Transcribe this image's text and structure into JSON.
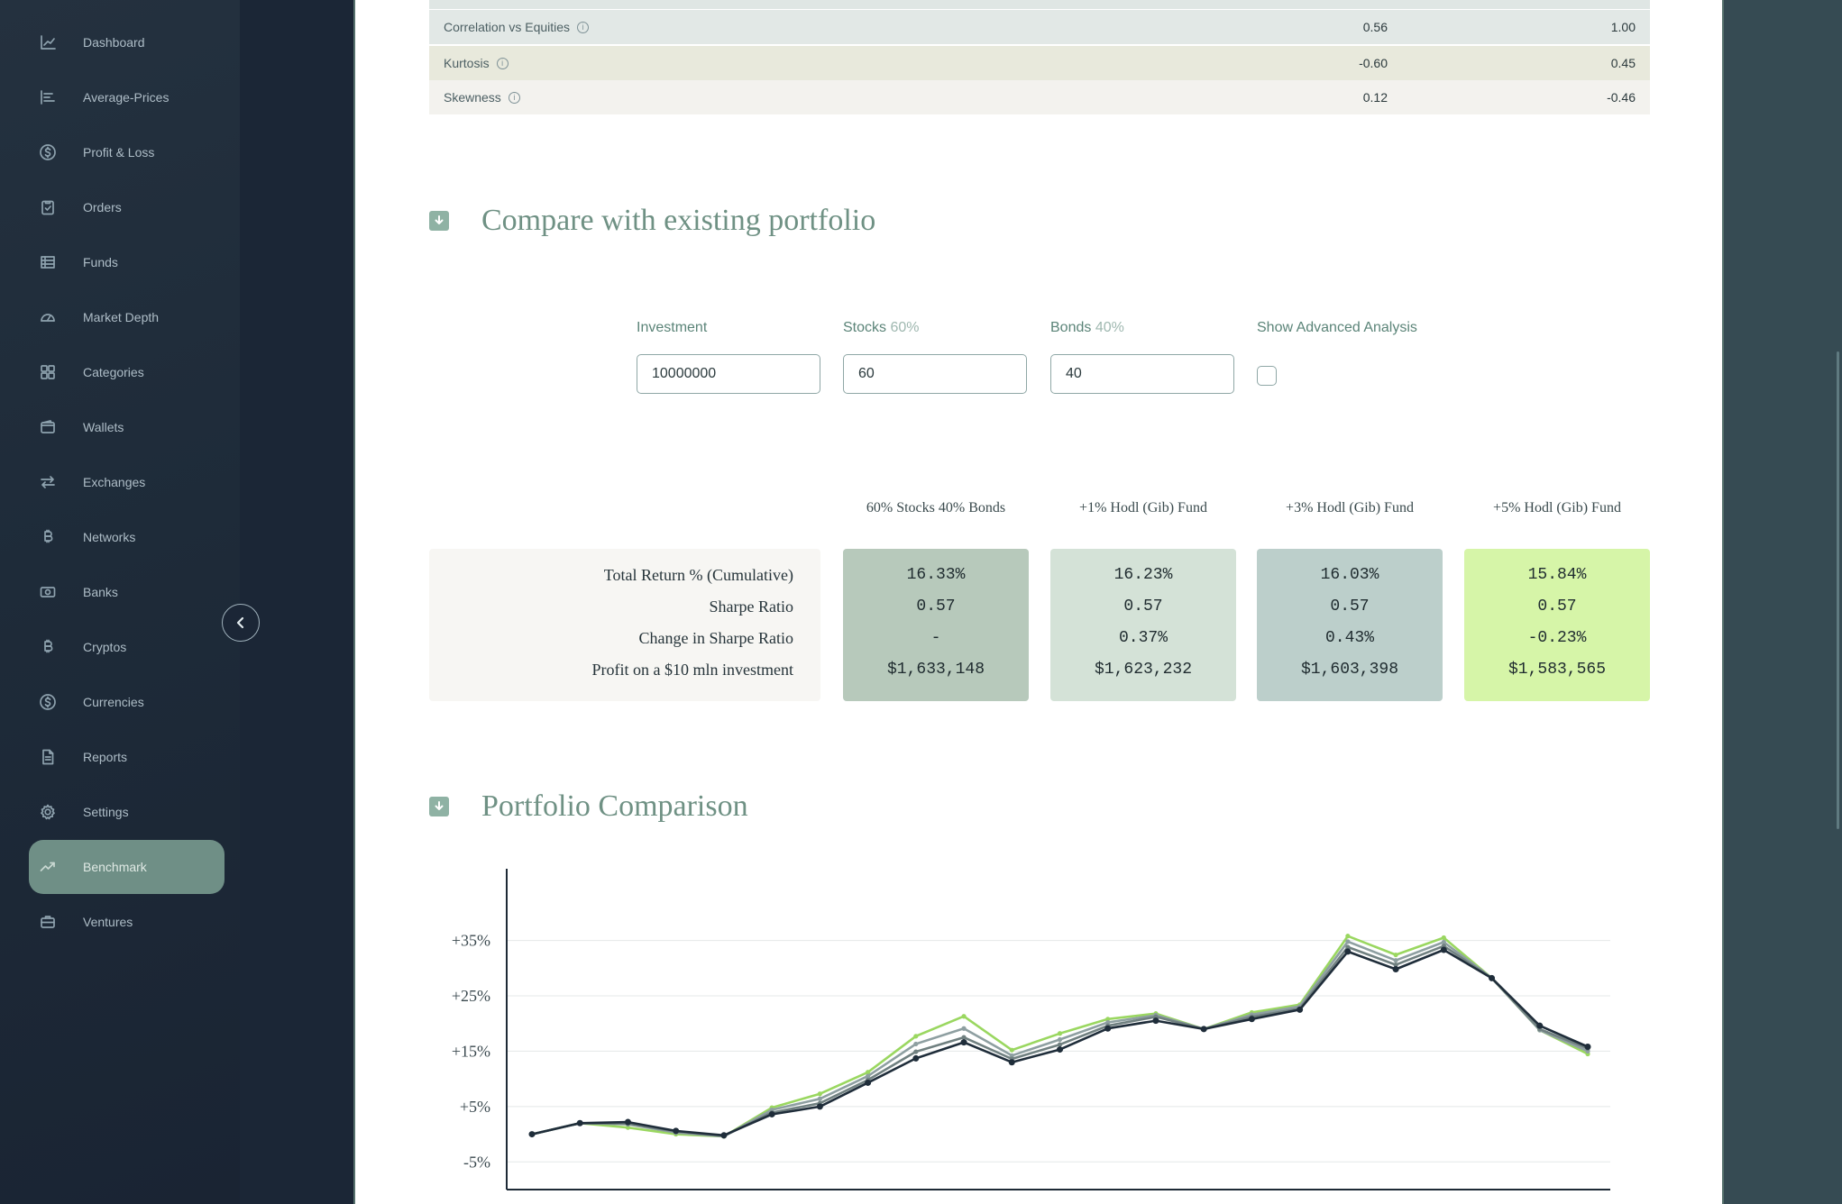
{
  "sidebar": {
    "items": [
      {
        "label": "Dashboard",
        "icon": "chart-line-icon"
      },
      {
        "label": "Average-Prices",
        "icon": "bar-list-icon"
      },
      {
        "label": "Profit & Loss",
        "icon": "dollar-circle-icon"
      },
      {
        "label": "Orders",
        "icon": "clipboard-check-icon"
      },
      {
        "label": "Funds",
        "icon": "grid-table-icon"
      },
      {
        "label": "Market Depth",
        "icon": "gauge-icon"
      },
      {
        "label": "Categories",
        "icon": "four-squares-icon"
      },
      {
        "label": "Wallets",
        "icon": "wallet-icon"
      },
      {
        "label": "Exchanges",
        "icon": "swap-arrows-icon"
      },
      {
        "label": "Networks",
        "icon": "bitcoin-icon"
      },
      {
        "label": "Banks",
        "icon": "cash-icon"
      },
      {
        "label": "Cryptos",
        "icon": "bitcoin-icon"
      },
      {
        "label": "Currencies",
        "icon": "dollar-circle-icon"
      },
      {
        "label": "Reports",
        "icon": "document-icon"
      },
      {
        "label": "Settings",
        "icon": "gear-icon"
      },
      {
        "label": "Benchmark",
        "icon": "trend-up-icon",
        "active": true
      },
      {
        "label": "Ventures",
        "icon": "briefcase-icon"
      }
    ],
    "collapse_icon": "chevron-left-icon"
  },
  "stats": [
    {
      "label": "Correlation vs Equities",
      "v1": "0.56",
      "v2": "1.00"
    },
    {
      "label": "Kurtosis",
      "v1": "-0.60",
      "v2": "0.45"
    },
    {
      "label": "Skewness",
      "v1": "0.12",
      "v2": "-0.46"
    }
  ],
  "compare": {
    "title": "Compare with existing portfolio",
    "investment_label": "Investment",
    "investment_value": "10000000",
    "stocks_label": "Stocks",
    "stocks_pct": "60%",
    "stocks_value": "60",
    "bonds_label": "Bonds",
    "bonds_pct": "40%",
    "bonds_value": "40",
    "advanced_label": "Show Advanced Analysis"
  },
  "table": {
    "columns": [
      "60% Stocks 40% Bonds",
      "+1% Hodl (Gib) Fund",
      "+3% Hodl (Gib) Fund",
      "+5% Hodl (Gib) Fund"
    ],
    "column_colors": [
      "#b7c9bb",
      "#d4e2d7",
      "#bccfcb",
      "#d6f5a8"
    ],
    "row_labels": [
      "Total Return % (Cumulative)",
      "Sharpe Ratio",
      "Change in Sharpe Ratio",
      "Profit on a $10 mln investment"
    ],
    "values": [
      [
        "16.33%",
        "0.57",
        "-",
        "$1,633,148"
      ],
      [
        "16.23%",
        "0.57",
        "0.37%",
        "$1,623,232"
      ],
      [
        "16.03%",
        "0.57",
        "0.43%",
        "$1,603,398"
      ],
      [
        "15.84%",
        "0.57",
        "-0.23%",
        "$1,583,565"
      ]
    ]
  },
  "comparison": {
    "title": "Portfolio Comparison"
  },
  "chart_data": {
    "type": "line",
    "y_ticks": [
      "+35%",
      "+25%",
      "+15%",
      "+5%",
      "-5%"
    ],
    "y_tick_values": [
      35,
      25,
      15,
      5,
      -5
    ],
    "ylim": [
      -10,
      46
    ],
    "grid": true,
    "series": [
      {
        "color": "#9ad760",
        "values": [
          0,
          2,
          1.2,
          0,
          -0.4,
          4.8,
          7.3,
          11.2,
          17.7,
          21.3,
          15.2,
          18.2,
          20.8,
          21.8,
          19,
          22,
          23.4,
          35.8,
          32.4,
          35.5,
          28.2,
          18.8,
          14.5
        ]
      },
      {
        "color": "#8e9fa1",
        "values": [
          0,
          2,
          1.8,
          0.3,
          -0.4,
          4.4,
          6.4,
          10.5,
          16.3,
          19.1,
          14.2,
          17.1,
          20.2,
          21.5,
          19,
          21.6,
          23.1,
          34.8,
          31.4,
          34.7,
          28.2,
          18.8,
          15
        ]
      },
      {
        "color": "#708080",
        "values": [
          0,
          2,
          1.9,
          0.5,
          -0.3,
          3.9,
          5.6,
          9.8,
          14.9,
          17.5,
          13.6,
          16.2,
          19.6,
          21.2,
          19,
          21.2,
          22.7,
          33.8,
          30.6,
          34,
          28.2,
          19,
          15.5
        ]
      },
      {
        "color": "#1f2d3a",
        "markers": true,
        "values": [
          0,
          2,
          2.2,
          0.6,
          -0.2,
          3.6,
          5,
          9.3,
          13.7,
          16.6,
          13,
          15.3,
          19.1,
          20.5,
          19,
          20.8,
          22.5,
          33,
          29.8,
          33.3,
          28.2,
          19.6,
          15.8
        ]
      }
    ]
  }
}
